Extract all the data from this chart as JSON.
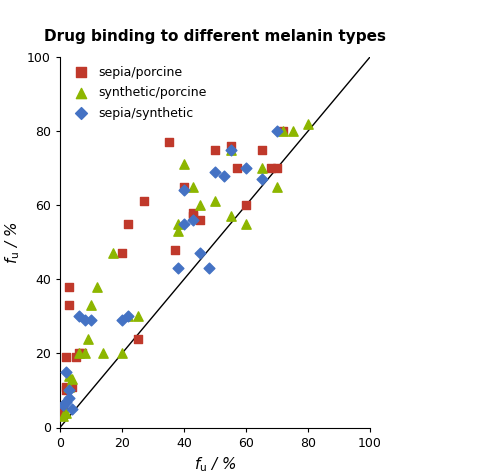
{
  "title": "Drug binding to different melanin types",
  "xlabel": "$\\mathit{f}_{\\mathrm{u}}$ / %",
  "ylabel": "$\\mathit{f}_{\\mathrm{u}}$ / %",
  "xlim": [
    0,
    100
  ],
  "ylim": [
    0,
    100
  ],
  "xticks": [
    0,
    20,
    40,
    60,
    80,
    100
  ],
  "yticks": [
    0,
    20,
    40,
    60,
    80,
    100
  ],
  "sepia_porcine": [
    [
      1,
      4
    ],
    [
      1,
      5
    ],
    [
      2,
      11
    ],
    [
      2,
      10
    ],
    [
      2,
      19
    ],
    [
      3,
      33
    ],
    [
      3,
      38
    ],
    [
      4,
      11
    ],
    [
      5,
      19
    ],
    [
      6,
      20
    ],
    [
      7,
      20
    ],
    [
      20,
      47
    ],
    [
      22,
      55
    ],
    [
      25,
      24
    ],
    [
      27,
      61
    ],
    [
      35,
      77
    ],
    [
      37,
      48
    ],
    [
      40,
      65
    ],
    [
      43,
      57
    ],
    [
      43,
      58
    ],
    [
      50,
      75
    ],
    [
      55,
      76
    ],
    [
      57,
      70
    ],
    [
      60,
      60
    ],
    [
      65,
      75
    ],
    [
      68,
      70
    ],
    [
      70,
      70
    ],
    [
      72,
      80
    ],
    [
      45,
      56
    ]
  ],
  "synthetic_porcine": [
    [
      1,
      3
    ],
    [
      2,
      4
    ],
    [
      3,
      11
    ],
    [
      3,
      14
    ],
    [
      4,
      13
    ],
    [
      6,
      20
    ],
    [
      8,
      20
    ],
    [
      9,
      24
    ],
    [
      10,
      33
    ],
    [
      12,
      38
    ],
    [
      14,
      20
    ],
    [
      17,
      47
    ],
    [
      20,
      20
    ],
    [
      22,
      30
    ],
    [
      25,
      30
    ],
    [
      38,
      55
    ],
    [
      38,
      53
    ],
    [
      40,
      71
    ],
    [
      43,
      65
    ],
    [
      45,
      60
    ],
    [
      50,
      61
    ],
    [
      55,
      57
    ],
    [
      55,
      75
    ],
    [
      60,
      55
    ],
    [
      65,
      70
    ],
    [
      70,
      65
    ],
    [
      72,
      80
    ],
    [
      75,
      80
    ],
    [
      80,
      82
    ]
  ],
  "sepia_synthetic": [
    [
      1,
      6
    ],
    [
      2,
      7
    ],
    [
      2,
      15
    ],
    [
      3,
      8
    ],
    [
      3,
      10
    ],
    [
      4,
      5
    ],
    [
      6,
      30
    ],
    [
      8,
      29
    ],
    [
      10,
      29
    ],
    [
      20,
      29
    ],
    [
      22,
      30
    ],
    [
      38,
      43
    ],
    [
      40,
      55
    ],
    [
      40,
      64
    ],
    [
      43,
      56
    ],
    [
      45,
      47
    ],
    [
      48,
      43
    ],
    [
      50,
      69
    ],
    [
      53,
      68
    ],
    [
      55,
      75
    ],
    [
      60,
      70
    ],
    [
      65,
      67
    ],
    [
      70,
      80
    ]
  ],
  "sepia_porcine_color": "#c0392b",
  "synthetic_porcine_color": "#8db600",
  "sepia_synthetic_color": "#4472c4",
  "background_color": "#ffffff",
  "title_fontsize": 11,
  "label_fontsize": 11,
  "tick_fontsize": 9,
  "legend_fontsize": 9,
  "marker_size_sq": 35,
  "marker_size_tri": 45,
  "marker_size_dia": 30
}
